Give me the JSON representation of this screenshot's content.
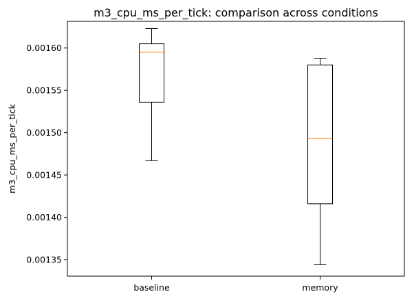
{
  "chart_data": {
    "type": "box",
    "title": "m3_cpu_ms_per_tick: comparison across conditions",
    "xlabel": "",
    "ylabel": "m3_cpu_ms_per_tick",
    "ylim": [
      0.0013305,
      0.0016315
    ],
    "yticks": [
      "0.00135",
      "0.00140",
      "0.00145",
      "0.00150",
      "0.00155",
      "0.00160"
    ],
    "categories": [
      "baseline",
      "memory"
    ],
    "boxes": [
      {
        "name": "baseline",
        "whisker_low": 0.001467,
        "q1": 0.001536,
        "median": 0.001595,
        "q3": 0.001605,
        "whisker_high": 0.001623
      },
      {
        "name": "memory",
        "whisker_low": 0.001344,
        "q1": 0.001416,
        "median": 0.001493,
        "q3": 0.00158,
        "whisker_high": 0.001588
      }
    ],
    "grid": false,
    "colors": {
      "median": "#ff7f0e",
      "box": "#000000",
      "axes": "#000000"
    }
  }
}
